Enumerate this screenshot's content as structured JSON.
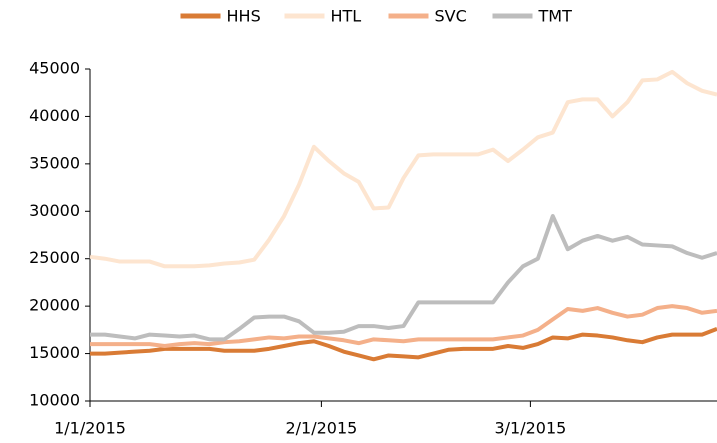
{
  "chart_data": {
    "type": "line",
    "x": [
      "1/1/2015",
      "1/3/2015",
      "1/5/2015",
      "1/7/2015",
      "1/9/2015",
      "1/11/2015",
      "1/13/2015",
      "1/15/2015",
      "1/17/2015",
      "1/19/2015",
      "1/21/2015",
      "1/23/2015",
      "1/25/2015",
      "1/27/2015",
      "1/29/2015",
      "1/31/2015",
      "2/2/2015",
      "2/4/2015",
      "2/6/2015",
      "2/8/2015",
      "2/10/2015",
      "2/12/2015",
      "2/14/2015",
      "2/16/2015",
      "2/18/2015",
      "2/20/2015",
      "2/22/2015",
      "2/24/2015",
      "2/26/2015",
      "2/28/2015",
      "3/2/2015",
      "3/4/2015",
      "3/6/2015",
      "3/8/2015",
      "3/10/2015",
      "3/12/2015",
      "3/14/2015",
      "3/16/2015",
      "3/18/2015",
      "3/20/2015",
      "3/22/2015",
      "3/24/2015",
      "3/26/2015"
    ],
    "series": [
      {
        "name": "HHS",
        "color": "#d97b35",
        "values": [
          15000,
          15000,
          15100,
          15200,
          15300,
          15500,
          15500,
          15500,
          15500,
          15300,
          15300,
          15300,
          15500,
          15800,
          16100,
          16300,
          15800,
          15200,
          14800,
          14400,
          14800,
          14700,
          14600,
          15000,
          15400,
          15500,
          15500,
          15500,
          15800,
          15600,
          16000,
          16700,
          16600,
          17000,
          16900,
          16700,
          16400,
          16200,
          16700,
          17000,
          17000,
          17000,
          17600
        ]
      },
      {
        "name": "HTL",
        "color": "#fde5d0",
        "values": [
          25200,
          25000,
          24700,
          24700,
          24700,
          24200,
          24200,
          24200,
          24300,
          24500,
          24600,
          24900,
          27000,
          29500,
          32800,
          36800,
          35300,
          34000,
          33100,
          30300,
          30400,
          33500,
          35900,
          36000,
          36000,
          36000,
          36000,
          36500,
          35300,
          36500,
          37800,
          38300,
          41500,
          41800,
          41800,
          40000,
          41500,
          43800,
          43900,
          44700,
          43500,
          42700,
          42300
        ]
      },
      {
        "name": "SVC",
        "color": "#f4b08a",
        "values": [
          16000,
          16000,
          16000,
          16000,
          16000,
          15800,
          16000,
          16100,
          16000,
          16200,
          16300,
          16500,
          16700,
          16600,
          16800,
          16800,
          16600,
          16400,
          16100,
          16500,
          16400,
          16300,
          16500,
          16500,
          16500,
          16500,
          16500,
          16500,
          16700,
          16900,
          17500,
          18600,
          19700,
          19500,
          19800,
          19300,
          18900,
          19100,
          19800,
          20000,
          19800,
          19300,
          19500
        ]
      },
      {
        "name": "TMT",
        "color": "#bdbdbd",
        "values": [
          17000,
          17000,
          16800,
          16600,
          17000,
          16900,
          16800,
          16900,
          16500,
          16500,
          17600,
          18800,
          18900,
          18900,
          18400,
          17200,
          17200,
          17300,
          17900,
          17900,
          17700,
          17900,
          20400,
          20400,
          20400,
          20400,
          20400,
          20400,
          22500,
          24200,
          25000,
          29500,
          26000,
          26900,
          27400,
          26900,
          27300,
          26500,
          26400,
          26300,
          25600,
          25100,
          25600
        ]
      }
    ],
    "xlim": [
      "1/1/2015",
      "3/26/2015"
    ],
    "xticks": [
      "1/1/2015",
      "2/1/2015",
      "3/1/2015"
    ],
    "ylim": [
      10000,
      45000
    ],
    "yticks": [
      10000,
      15000,
      20000,
      25000,
      30000,
      35000,
      40000,
      45000
    ],
    "legend": "top"
  }
}
